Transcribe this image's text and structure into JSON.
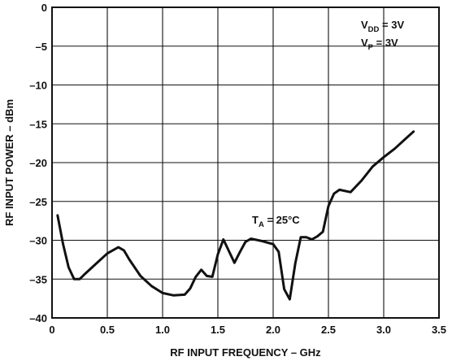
{
  "chart_data": {
    "type": "line",
    "xlabel": "RF INPUT FREQUENCY – GHz",
    "ylabel": "RF INPUT POWER – dBm",
    "xlim": [
      0,
      3.5
    ],
    "ylim": [
      -40,
      0
    ],
    "x_ticks": [
      "0",
      "0.5",
      "1.0",
      "1.5",
      "2.0",
      "2.5",
      "3.0",
      "3.5"
    ],
    "y_ticks": [
      "0",
      "–5",
      "–10",
      "–15",
      "–20",
      "–25",
      "–30",
      "–35",
      "–40"
    ],
    "grid": true,
    "annotations": {
      "vdd": {
        "main": "V",
        "sub": "DD",
        "rest": " = 3V"
      },
      "vp": {
        "main": "V",
        "sub": "P",
        "rest": " = 3V"
      },
      "ta": {
        "main": "T",
        "sub": "A",
        "rest": " = 25°C"
      }
    },
    "series": [
      {
        "x": [
          0.05,
          0.1,
          0.15,
          0.2,
          0.25,
          0.3,
          0.4,
          0.5,
          0.6,
          0.65,
          0.7,
          0.8,
          0.9,
          1.0,
          1.1,
          1.2,
          1.25,
          1.3,
          1.35,
          1.4,
          1.45,
          1.5,
          1.55,
          1.6,
          1.65,
          1.7,
          1.75,
          1.8,
          1.9,
          2.0,
          2.05,
          2.1,
          2.15,
          2.2,
          2.25,
          2.3,
          2.35,
          2.4,
          2.45,
          2.5,
          2.55,
          2.6,
          2.7,
          2.8,
          2.9,
          3.0,
          3.1,
          3.2,
          3.27
        ],
        "y": [
          -26.8,
          -30.5,
          -33.5,
          -35.0,
          -35.0,
          -34.3,
          -33.0,
          -31.7,
          -30.9,
          -31.3,
          -32.5,
          -34.6,
          -35.9,
          -36.8,
          -37.1,
          -37.0,
          -36.2,
          -34.7,
          -33.8,
          -34.6,
          -34.7,
          -31.8,
          -29.9,
          -31.4,
          -32.9,
          -31.5,
          -30.2,
          -29.8,
          -30.1,
          -30.5,
          -31.5,
          -36.3,
          -37.6,
          -33.0,
          -29.6,
          -29.6,
          -29.9,
          -29.5,
          -28.9,
          -25.6,
          -24.0,
          -23.5,
          -23.8,
          -22.3,
          -20.5,
          -19.3,
          -18.2,
          -16.9,
          -16.0
        ]
      }
    ]
  }
}
